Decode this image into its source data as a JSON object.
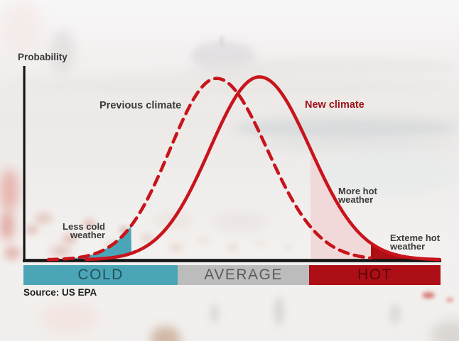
{
  "page": {
    "background_description": "blurred crowded beach photo with pier",
    "y_axis_label": "Probability",
    "source_text": "Source: US EPA"
  },
  "labels": {
    "previous_climate": "Previous climate",
    "new_climate": "New climate",
    "less_cold": "Less cold\nweather",
    "more_hot": "More hot\nweather",
    "extreme_hot": "Exteme hot\nweather"
  },
  "colors": {
    "curve_red": "#c8141b",
    "new_climate_label": "#9e1116",
    "teal": "#4aa6b7",
    "pink": "#f1d9da",
    "dark_red": "#ae0e15",
    "band_gray": "#bcbcbc",
    "axis_black": "#151515",
    "label_gray": "#3a3a3a"
  },
  "chart_data": {
    "type": "area",
    "title": "",
    "xlabel": "",
    "ylabel": "Probability",
    "x_units": [
      0,
      100
    ],
    "y_units": [
      0,
      1
    ],
    "grid": false,
    "legend_position": "inline-annotations",
    "series": [
      {
        "name": "Previous climate",
        "style": "dashed",
        "color": "#c8141b",
        "distribution": "normal",
        "mean": 46.3,
        "sigma_left": 11.2,
        "sigma_right": 12.2,
        "peak": 0.992,
        "u_start": 6,
        "u_end": 83.5
      },
      {
        "name": "New climate",
        "style": "solid",
        "color": "#c8141b",
        "distribution": "normal",
        "mean": 56.6,
        "sigma_left": 11.9,
        "sigma_right": 12.2,
        "peak": 1.0,
        "u_start": 15,
        "u_end": 100
      }
    ],
    "regions": [
      {
        "name": "Less cold weather",
        "fill": "#4aa6b7",
        "between_top": "Previous climate",
        "between_bottom": "New climate",
        "x_range": [
          9,
          25.9
        ]
      },
      {
        "name": "More hot weather",
        "fill": "#f1d9da",
        "between_top": "New climate",
        "between_bottom": "baseline",
        "x_range": [
          68.8,
          83.3
        ]
      },
      {
        "name": "Exteme hot weather",
        "fill": "#ae0e15",
        "between_top": "New climate",
        "between_bottom": "baseline",
        "x_range": [
          83.3,
          99.7
        ]
      }
    ],
    "x_axis_bands": [
      {
        "label": "COLD",
        "range": [
          0,
          37
        ],
        "color": "#4aa6b7"
      },
      {
        "label": "AVERAGE",
        "range": [
          37,
          68.5
        ],
        "color": "#bcbcbc"
      },
      {
        "label": "HOT",
        "range": [
          68.5,
          100
        ],
        "color": "#ae0e15"
      }
    ],
    "source": "US EPA"
  }
}
